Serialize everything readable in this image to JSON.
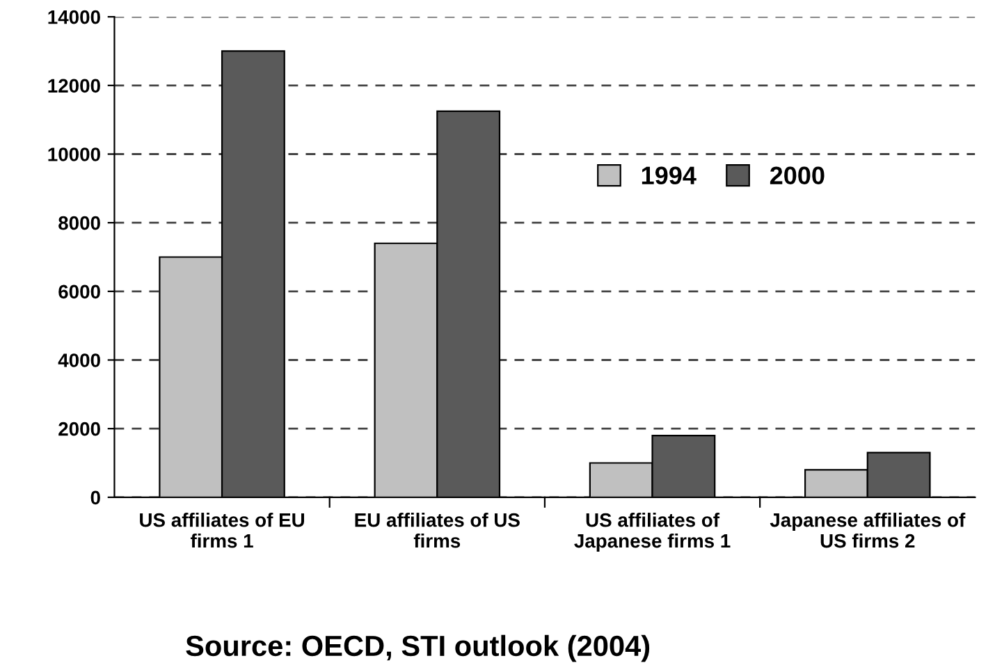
{
  "chart_data": {
    "type": "bar",
    "categories": [
      "US affiliates of EU firms 1",
      "EU affiliates of US firms",
      "US affiliates of Japanese firms 1",
      "Japanese affiliates of US firms 2"
    ],
    "series": [
      {
        "name": "1994",
        "color": "#c0c0c0",
        "values": [
          7000,
          7400,
          1000,
          800
        ]
      },
      {
        "name": "2000",
        "color": "#5a5a5a",
        "values": [
          13000,
          11250,
          1800,
          1300
        ]
      }
    ],
    "ylim": [
      0,
      14000
    ],
    "yticks": [
      0,
      2000,
      4000,
      6000,
      8000,
      10000,
      12000,
      14000
    ],
    "grid": "y",
    "legend": "top right",
    "annotations": [
      "Source: OECD, STI outlook (2004)"
    ]
  }
}
